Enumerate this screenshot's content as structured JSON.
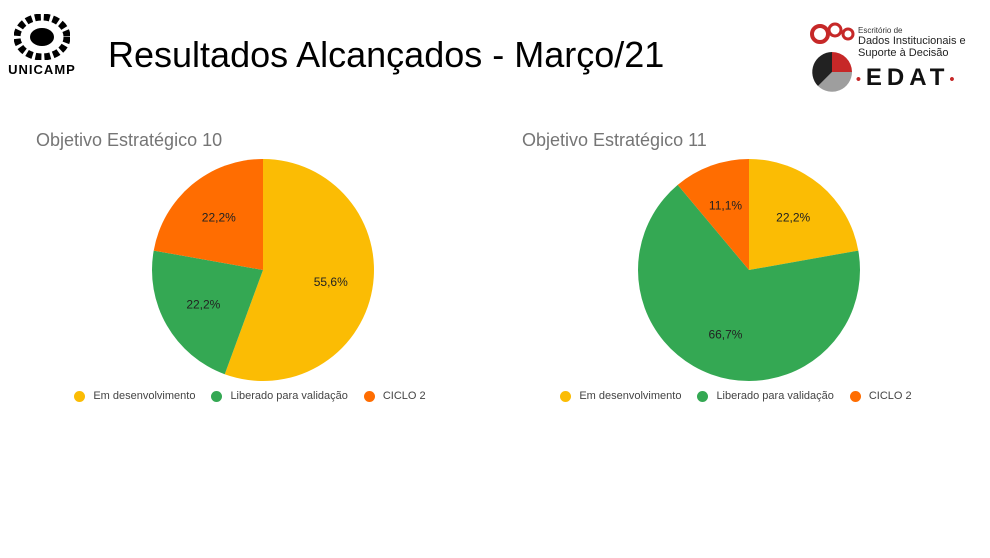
{
  "header": {
    "title": "Resultados Alcançados - Março/21",
    "logo_left_text": "UNICAMP",
    "logo_right": {
      "line1": "Escritório de",
      "line2": "Dados Institucionais e",
      "line3": "Suporte à Decisão",
      "acronym": "EDAT"
    }
  },
  "colors": {
    "yellow": "#FBBC04",
    "green": "#34A853",
    "orange": "#FF6D01",
    "edat_red": "#C62828"
  },
  "chart_data": [
    {
      "type": "pie",
      "title": "Objetivo Estratégico 10",
      "categories": [
        "Em desenvolvimento",
        "Liberado para validação",
        "CICLO 2"
      ],
      "values": [
        55.6,
        22.2,
        22.2
      ],
      "labels": [
        "55,6%",
        "22,2%",
        "22,2%"
      ],
      "colors": [
        "#FBBC04",
        "#34A853",
        "#FF6D01"
      ],
      "legend": "bottom"
    },
    {
      "type": "pie",
      "title": "Objetivo Estratégico 11",
      "categories": [
        "Em desenvolvimento",
        "Liberado para validação",
        "CICLO 2"
      ],
      "values": [
        22.2,
        66.7,
        11.1
      ],
      "labels": [
        "22,2%",
        "66,7%",
        "11,1%"
      ],
      "colors": [
        "#FBBC04",
        "#34A853",
        "#FF6D01"
      ],
      "legend": "bottom"
    }
  ]
}
